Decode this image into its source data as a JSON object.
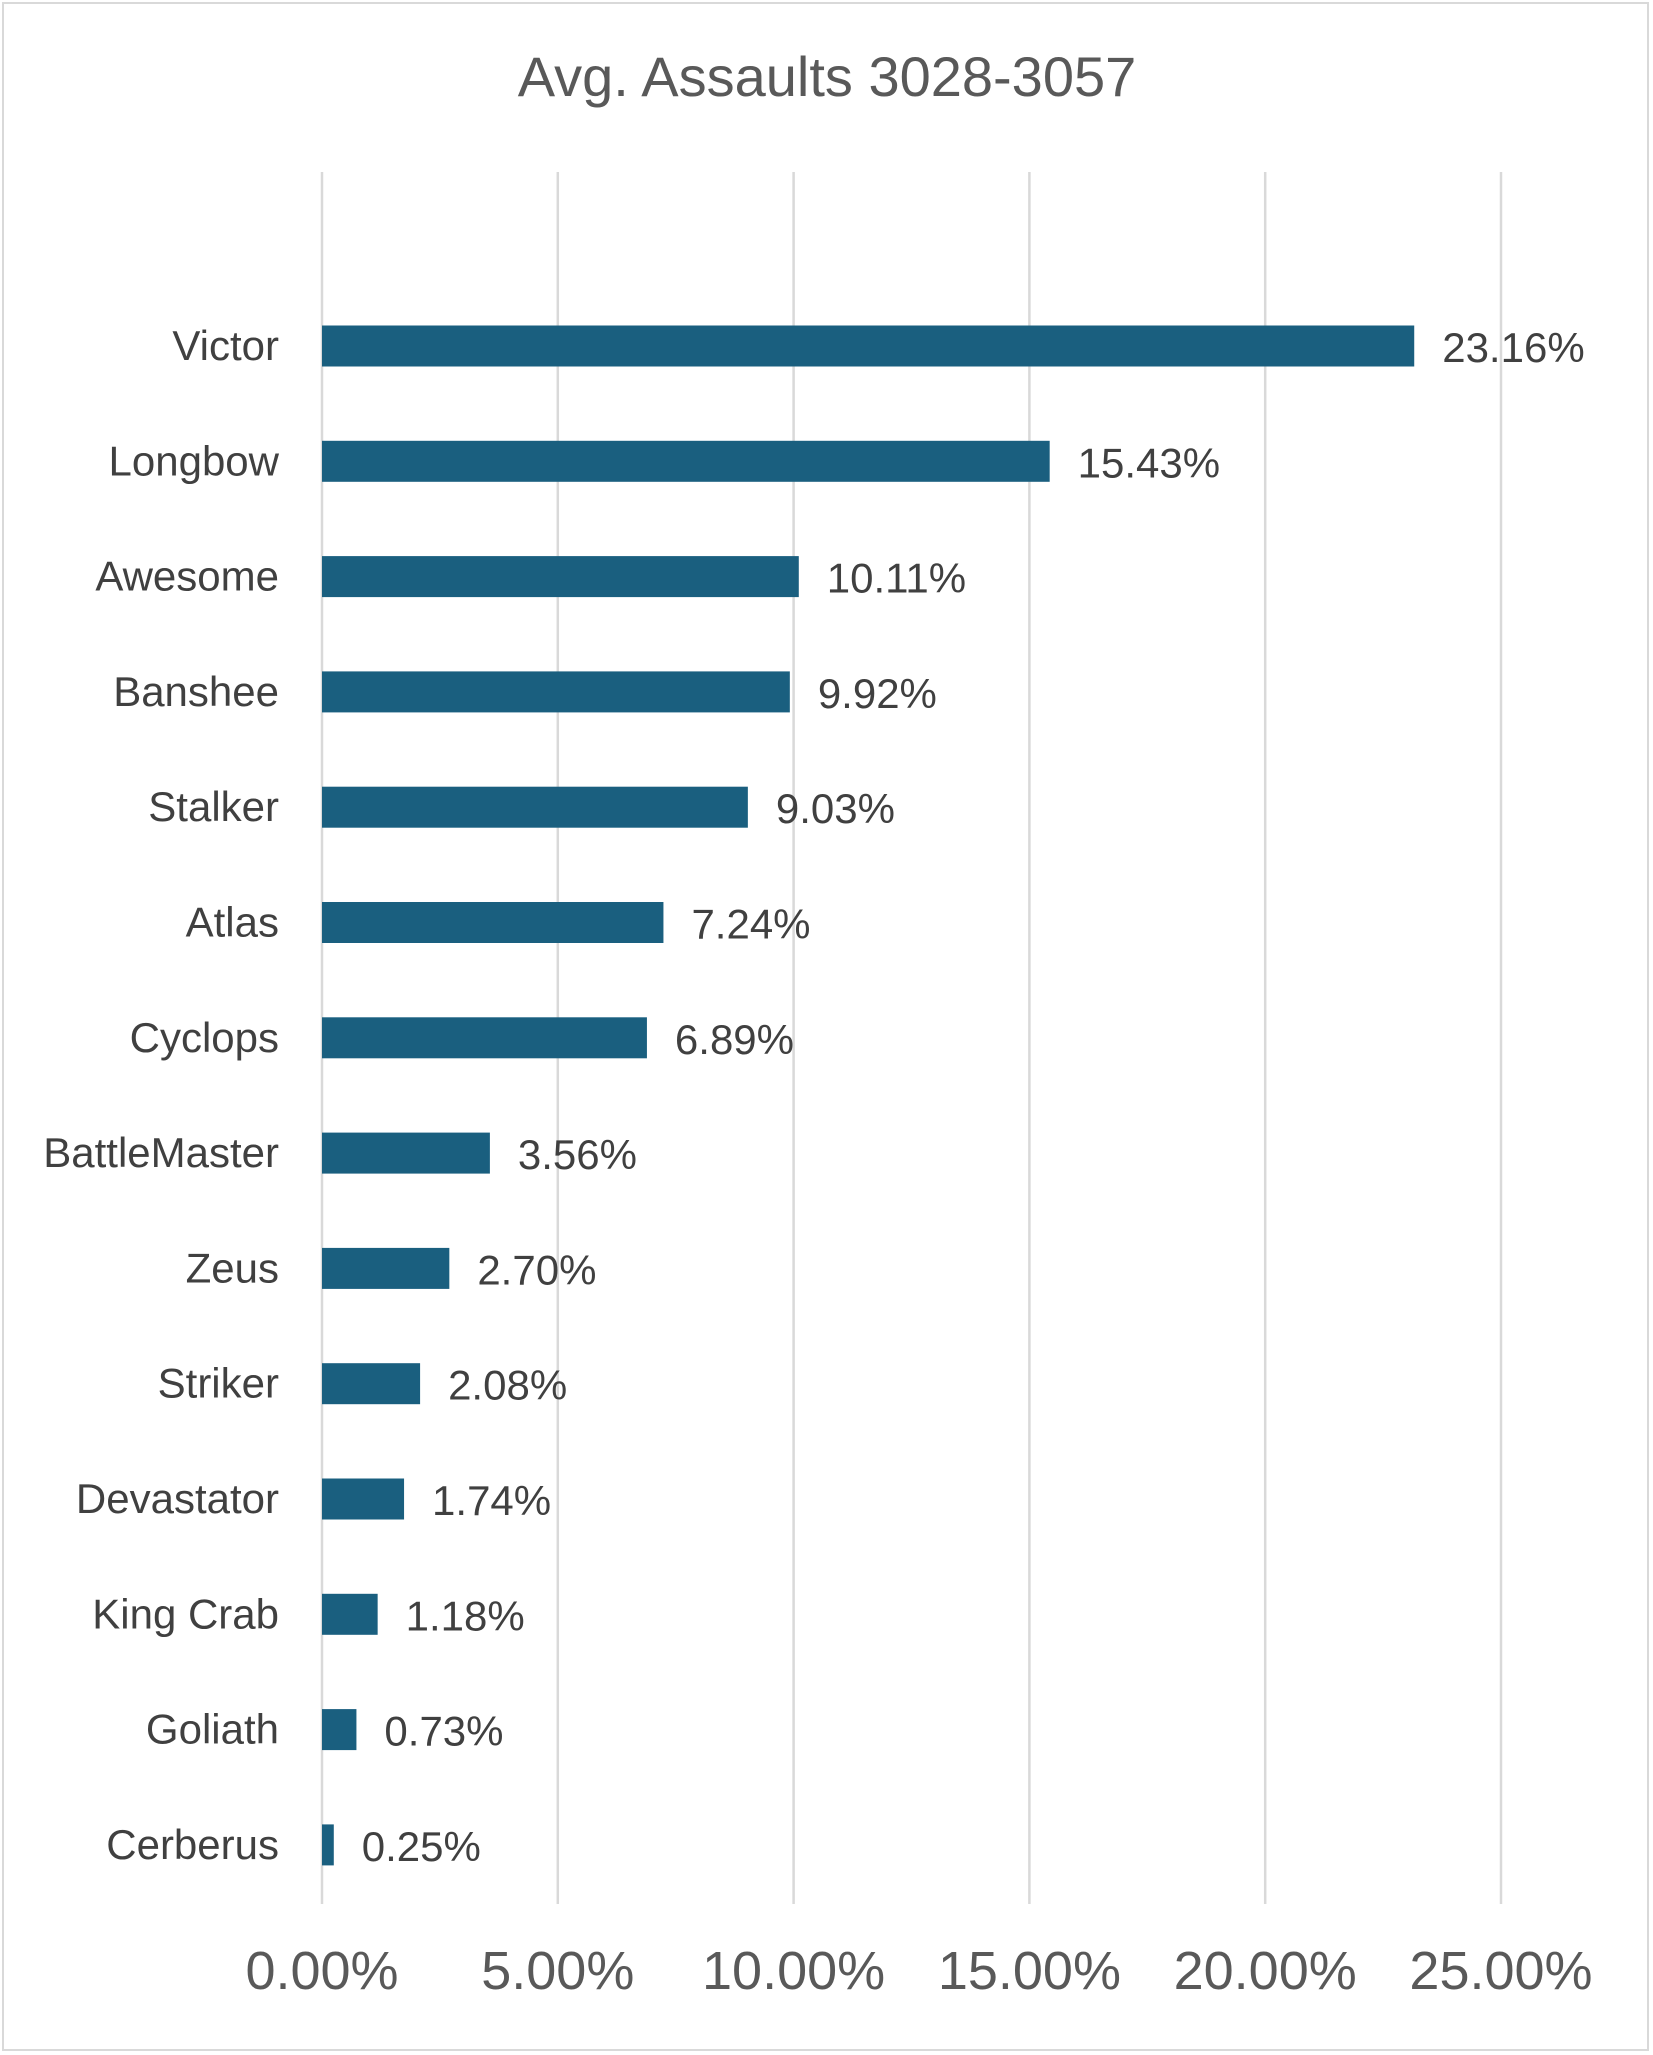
{
  "chart_data": {
    "type": "bar",
    "orientation": "horizontal",
    "title": "Avg. Assaults 3028-3057",
    "xlabel": "",
    "ylabel": "",
    "categories": [
      "Victor",
      "Longbow",
      "Awesome",
      "Banshee",
      "Stalker",
      "Atlas",
      "Cyclops",
      "BattleMaster",
      "Zeus",
      "Striker",
      "Devastator",
      "King Crab",
      "Goliath",
      "Cerberus"
    ],
    "values": [
      23.16,
      15.43,
      10.11,
      9.92,
      9.03,
      7.24,
      6.89,
      3.56,
      2.7,
      2.08,
      1.74,
      1.18,
      0.73,
      0.25
    ],
    "data_labels": [
      "23.16%",
      "15.43%",
      "10.11%",
      "9.92%",
      "9.03%",
      "7.24%",
      "6.89%",
      "3.56%",
      "2.70%",
      "2.08%",
      "1.74%",
      "1.18%",
      "0.73%",
      "0.25%"
    ],
    "xlim": [
      0,
      25
    ],
    "x_ticks": [
      0,
      5,
      10,
      15,
      20,
      25
    ],
    "x_tick_labels": [
      "0.00%",
      "5.00%",
      "10.00%",
      "15.00%",
      "20.00%",
      "25.00%"
    ],
    "grid": "vertical",
    "legend": "none",
    "bar_color": "#1a5f7f",
    "gridline_color": "#d9d9d9",
    "text_color": "#404040"
  }
}
